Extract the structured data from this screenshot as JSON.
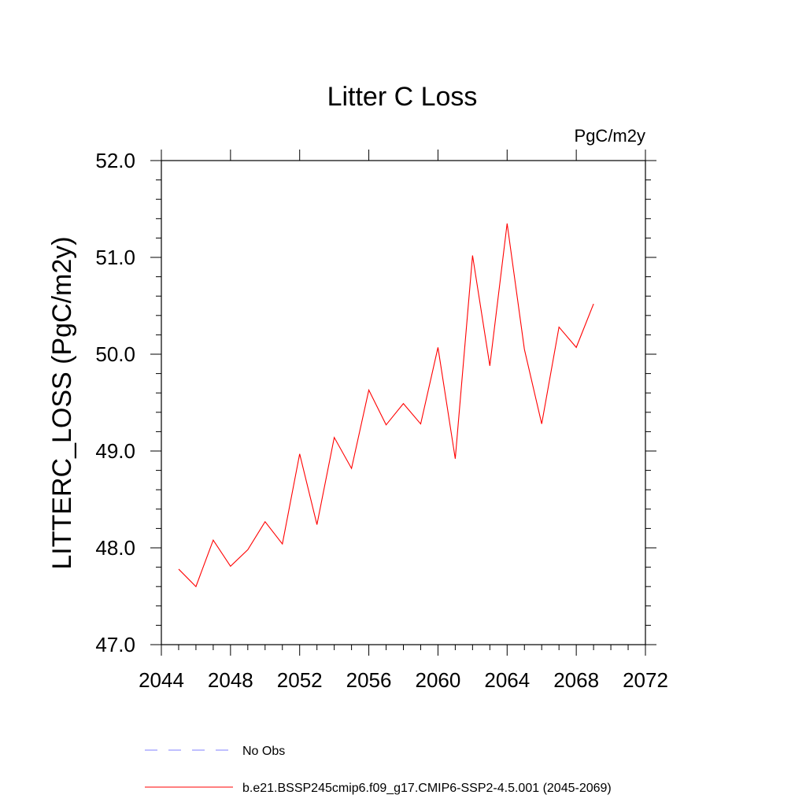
{
  "chart_data": {
    "type": "line",
    "title": "Litter C Loss",
    "units_label": "PgC/m2y",
    "ylabel": "LITTERC_LOSS  (PgC/m2y)",
    "xlabel": "",
    "xlim": [
      2044,
      2072
    ],
    "ylim": [
      47.0,
      52.0
    ],
    "x_ticks": [
      2044,
      2048,
      2052,
      2056,
      2060,
      2064,
      2068,
      2072
    ],
    "x_tick_labels": [
      "2044",
      "2048",
      "2052",
      "2056",
      "2060",
      "2064",
      "2068",
      "2072"
    ],
    "y_ticks": [
      47.0,
      48.0,
      49.0,
      50.0,
      51.0,
      52.0
    ],
    "y_tick_labels": [
      "47.0",
      "48.0",
      "49.0",
      "50.0",
      "51.0",
      "52.0"
    ],
    "grid": false,
    "legend_position": "bottom",
    "series": [
      {
        "name": "b.e21.BSSP245cmip6.f09_g17.CMIP6-SSP2-4.5.001 (2045-2069)",
        "color": "#ff0000",
        "style": "solid",
        "x": [
          2045,
          2046,
          2047,
          2048,
          2049,
          2050,
          2051,
          2052,
          2053,
          2054,
          2055,
          2056,
          2057,
          2058,
          2059,
          2060,
          2061,
          2062,
          2063,
          2064,
          2065,
          2066,
          2067,
          2068,
          2069
        ],
        "values": [
          47.78,
          47.6,
          48.08,
          47.81,
          47.98,
          48.27,
          48.04,
          48.97,
          48.24,
          49.14,
          48.82,
          49.63,
          49.27,
          49.49,
          49.28,
          50.07,
          48.92,
          51.02,
          49.88,
          51.35,
          50.05,
          49.28,
          50.28,
          50.07,
          50.52
        ]
      },
      {
        "name": "No Obs",
        "color": "#8080ff",
        "style": "dashed",
        "x": [],
        "values": []
      }
    ]
  }
}
